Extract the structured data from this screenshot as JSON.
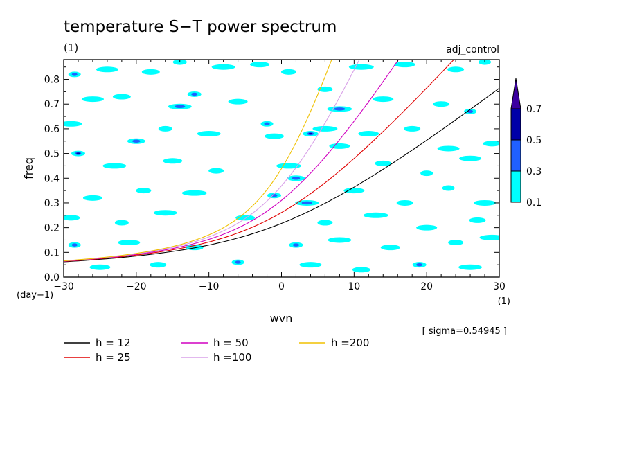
{
  "chart_data": {
    "type": "heatmap",
    "title": "temperature S−T power spectrum",
    "units_label": "(1)",
    "experiment": "adj_control",
    "xlabel": "wvn",
    "ylabel": "freq",
    "x_unit": "(1)",
    "y_unit": "(day−1)",
    "xlim": [
      -30,
      30
    ],
    "ylim": [
      0,
      0.88
    ],
    "x_ticks": [
      -30,
      -20,
      -10,
      0,
      10,
      20,
      30
    ],
    "x_tick_labels": [
      "−30",
      "−20",
      "−10",
      "0",
      "10",
      "20",
      "30"
    ],
    "y_ticks": [
      0.0,
      0.1,
      0.2,
      0.3,
      0.4,
      0.5,
      0.6,
      0.7,
      0.8
    ],
    "y_tick_labels": [
      "0.0",
      "0.1",
      "0.2",
      "0.3",
      "0.4",
      "0.5",
      "0.6",
      "0.7",
      "0.8"
    ],
    "sigma_text": "[ sigma=0.54945 ]",
    "colorbar": {
      "levels": [
        "0.1",
        "0.3",
        "0.5",
        "0.7"
      ],
      "colors": [
        "#00ffff",
        "#2060ff",
        "#0000a8",
        "#3c00a0"
      ]
    },
    "contour_blobs": [
      {
        "x": -28.5,
        "y": 0.82,
        "level": 2
      },
      {
        "x": -24,
        "y": 0.84,
        "level": 1
      },
      {
        "x": -18,
        "y": 0.83,
        "level": 1
      },
      {
        "x": -14,
        "y": 0.87,
        "level": 1
      },
      {
        "x": -8,
        "y": 0.85,
        "level": 1
      },
      {
        "x": -3,
        "y": 0.86,
        "level": 1
      },
      {
        "x": 1,
        "y": 0.83,
        "level": 1
      },
      {
        "x": 11,
        "y": 0.85,
        "level": 1
      },
      {
        "x": 17,
        "y": 0.86,
        "level": 1
      },
      {
        "x": 24,
        "y": 0.84,
        "level": 1
      },
      {
        "x": 28,
        "y": 0.87,
        "level": 1
      },
      {
        "x": -26,
        "y": 0.72,
        "level": 1
      },
      {
        "x": -22,
        "y": 0.73,
        "level": 1
      },
      {
        "x": -12,
        "y": 0.74,
        "level": 2
      },
      {
        "x": -14,
        "y": 0.69,
        "level": 2
      },
      {
        "x": -6,
        "y": 0.71,
        "level": 1
      },
      {
        "x": 6,
        "y": 0.76,
        "level": 1
      },
      {
        "x": 8,
        "y": 0.68,
        "level": 2
      },
      {
        "x": 14,
        "y": 0.72,
        "level": 1
      },
      {
        "x": 22,
        "y": 0.7,
        "level": 1
      },
      {
        "x": 26,
        "y": 0.67,
        "level": 2
      },
      {
        "x": -29,
        "y": 0.62,
        "level": 1
      },
      {
        "x": -20,
        "y": 0.55,
        "level": 2
      },
      {
        "x": -16,
        "y": 0.6,
        "level": 1
      },
      {
        "x": -10,
        "y": 0.58,
        "level": 1
      },
      {
        "x": -1,
        "y": 0.57,
        "level": 1
      },
      {
        "x": 4,
        "y": 0.58,
        "level": 3
      },
      {
        "x": 6,
        "y": 0.6,
        "level": 1
      },
      {
        "x": 12,
        "y": 0.58,
        "level": 1
      },
      {
        "x": 18,
        "y": 0.6,
        "level": 1
      },
      {
        "x": -2,
        "y": 0.62,
        "level": 2
      },
      {
        "x": 23,
        "y": 0.52,
        "level": 1
      },
      {
        "x": 29,
        "y": 0.54,
        "level": 1
      },
      {
        "x": -28,
        "y": 0.5,
        "level": 3
      },
      {
        "x": -23,
        "y": 0.45,
        "level": 1
      },
      {
        "x": -15,
        "y": 0.47,
        "level": 1
      },
      {
        "x": -9,
        "y": 0.43,
        "level": 1
      },
      {
        "x": 1,
        "y": 0.45,
        "level": 1
      },
      {
        "x": 8,
        "y": 0.53,
        "level": 1
      },
      {
        "x": 14,
        "y": 0.46,
        "level": 1
      },
      {
        "x": 20,
        "y": 0.42,
        "level": 1
      },
      {
        "x": 26,
        "y": 0.48,
        "level": 1
      },
      {
        "x": 2,
        "y": 0.4,
        "level": 2
      },
      {
        "x": -1,
        "y": 0.33,
        "level": 2
      },
      {
        "x": 3.5,
        "y": 0.3,
        "level": 2
      },
      {
        "x": -26,
        "y": 0.32,
        "level": 1
      },
      {
        "x": -19,
        "y": 0.35,
        "level": 1
      },
      {
        "x": -12,
        "y": 0.34,
        "level": 1
      },
      {
        "x": 10,
        "y": 0.35,
        "level": 1
      },
      {
        "x": 17,
        "y": 0.3,
        "level": 1
      },
      {
        "x": 23,
        "y": 0.36,
        "level": 1
      },
      {
        "x": 28,
        "y": 0.3,
        "level": 1
      },
      {
        "x": -29,
        "y": 0.24,
        "level": 1
      },
      {
        "x": -22,
        "y": 0.22,
        "level": 1
      },
      {
        "x": -16,
        "y": 0.26,
        "level": 1
      },
      {
        "x": -5,
        "y": 0.24,
        "level": 1
      },
      {
        "x": 6,
        "y": 0.22,
        "level": 1
      },
      {
        "x": 13,
        "y": 0.25,
        "level": 1
      },
      {
        "x": 20,
        "y": 0.2,
        "level": 1
      },
      {
        "x": 27,
        "y": 0.23,
        "level": 1
      },
      {
        "x": -28.5,
        "y": 0.13,
        "level": 2
      },
      {
        "x": -21,
        "y": 0.14,
        "level": 1
      },
      {
        "x": -12,
        "y": 0.12,
        "level": 1
      },
      {
        "x": 2,
        "y": 0.13,
        "level": 2
      },
      {
        "x": 8,
        "y": 0.15,
        "level": 1
      },
      {
        "x": 15,
        "y": 0.12,
        "level": 1
      },
      {
        "x": 24,
        "y": 0.14,
        "level": 1
      },
      {
        "x": 29,
        "y": 0.16,
        "level": 1
      },
      {
        "x": -25,
        "y": 0.04,
        "level": 1
      },
      {
        "x": -17,
        "y": 0.05,
        "level": 1
      },
      {
        "x": -6,
        "y": 0.06,
        "level": 2
      },
      {
        "x": 4,
        "y": 0.05,
        "level": 1
      },
      {
        "x": 11,
        "y": 0.03,
        "level": 1
      },
      {
        "x": 19,
        "y": 0.05,
        "level": 2
      },
      {
        "x": 26,
        "y": 0.04,
        "level": 1
      }
    ],
    "series": [
      {
        "name": "h = 12",
        "h": 12,
        "color": "#000000"
      },
      {
        "name": "h = 25",
        "h": 25,
        "color": "#e00000"
      },
      {
        "name": "h = 50",
        "h": 50,
        "color": "#d000c0"
      },
      {
        "name": "h =100",
        "h": 100,
        "color": "#d8a0e8"
      },
      {
        "name": "h =200",
        "h": 200,
        "color": "#f0c000"
      }
    ]
  }
}
